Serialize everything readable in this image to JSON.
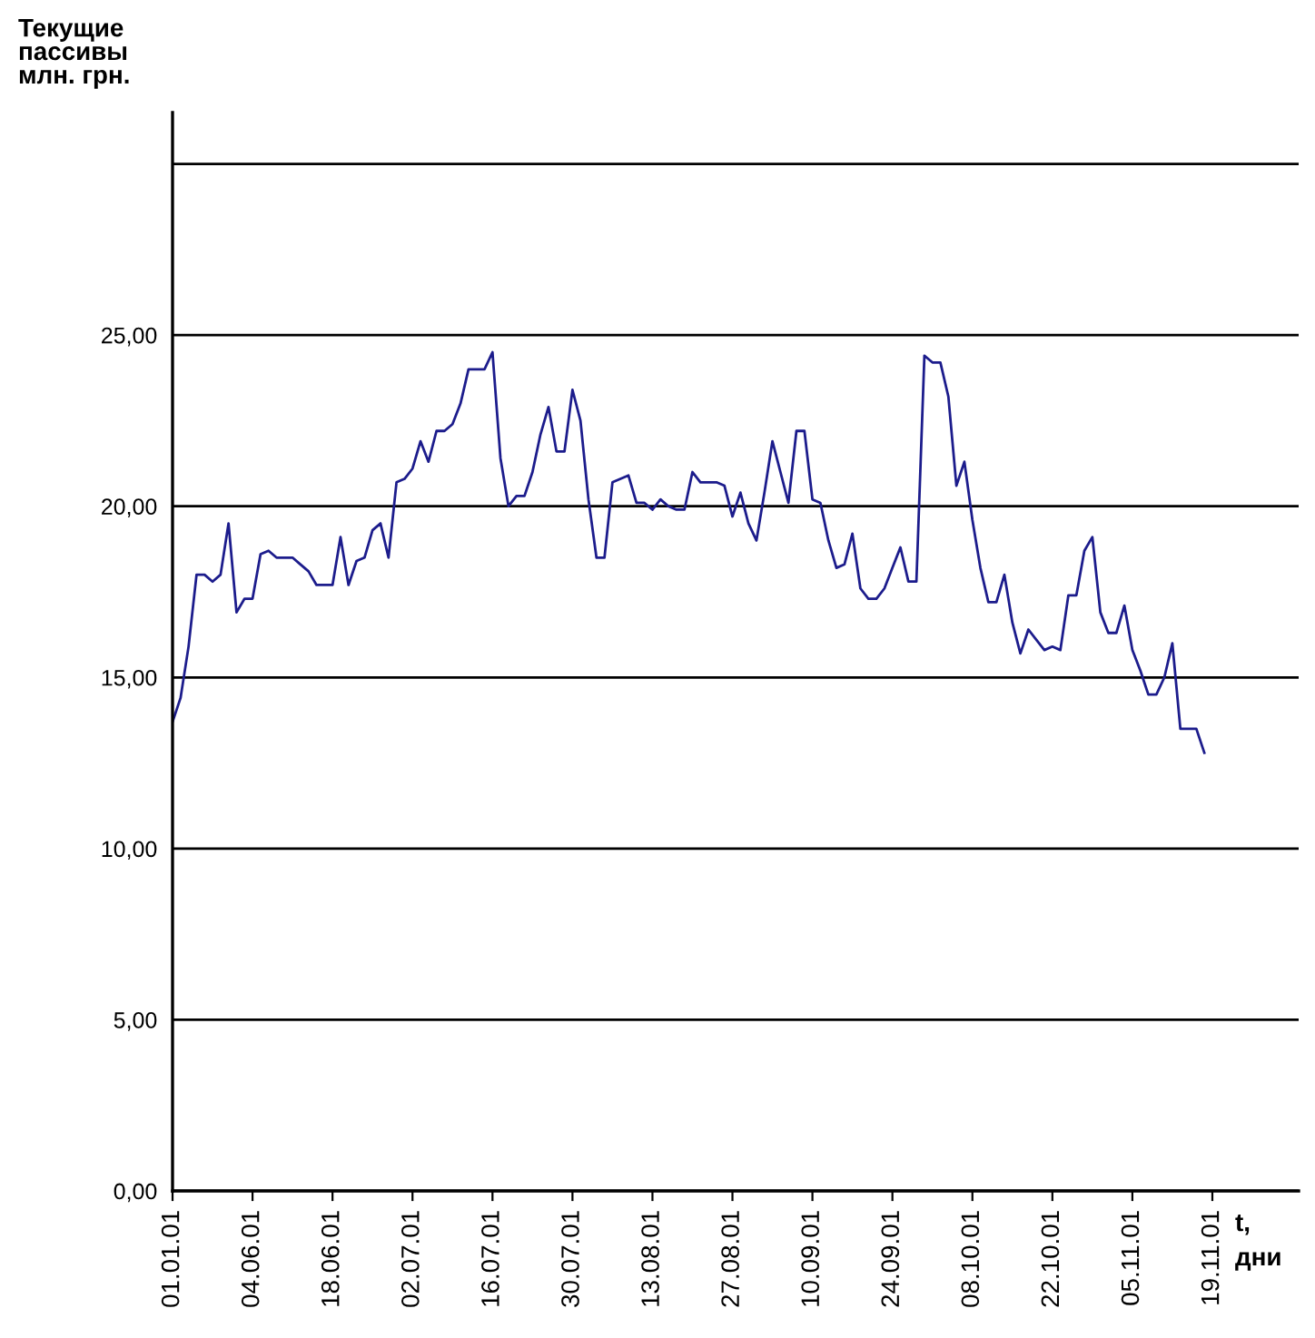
{
  "chart_data": {
    "type": "line",
    "ylabel": "Текущие\nпассивы\nмлн. грн.",
    "xlabel": "t,\nдни",
    "categories": [
      "01.01.01",
      null,
      null,
      null,
      null,
      null,
      null,
      null,
      null,
      null,
      "04.06.01",
      null,
      null,
      null,
      null,
      null,
      null,
      null,
      null,
      null,
      "18.06.01",
      null,
      null,
      null,
      null,
      null,
      null,
      null,
      null,
      null,
      "02.07.01",
      null,
      null,
      null,
      null,
      null,
      null,
      null,
      null,
      null,
      "16.07.01",
      null,
      null,
      null,
      null,
      null,
      null,
      null,
      null,
      null,
      "30.07.01",
      null,
      null,
      null,
      null,
      null,
      null,
      null,
      null,
      null,
      "13.08.01",
      null,
      null,
      null,
      null,
      null,
      null,
      null,
      null,
      null,
      "27.08.01",
      null,
      null,
      null,
      null,
      null,
      null,
      null,
      null,
      null,
      "10.09.01",
      null,
      null,
      null,
      null,
      null,
      null,
      null,
      null,
      null,
      "24.09.01",
      null,
      null,
      null,
      null,
      null,
      null,
      null,
      null,
      null,
      "08.10.01",
      null,
      null,
      null,
      null,
      null,
      null,
      null,
      null,
      null,
      "22.10.01",
      null,
      null,
      null,
      null,
      null,
      null,
      null,
      null,
      null,
      "05.11.01",
      null,
      null,
      null,
      null,
      null,
      null,
      null,
      null,
      null,
      "19.11.01"
    ],
    "series": [
      {
        "color": "#1c1c8c",
        "values": [
          13.7,
          14.4,
          15.9,
          18.0,
          18.0,
          17.8,
          18.0,
          19.5,
          16.9,
          17.3,
          17.3,
          18.6,
          18.7,
          18.5,
          18.5,
          18.5,
          18.3,
          18.1,
          17.7,
          17.7,
          17.7,
          19.1,
          17.7,
          18.4,
          18.5,
          19.3,
          19.5,
          18.5,
          20.7,
          20.8,
          21.1,
          21.9,
          21.3,
          22.2,
          22.2,
          22.4,
          23.0,
          24.0,
          24.0,
          24.0,
          24.5,
          21.4,
          20.0,
          20.3,
          20.3,
          21.0,
          22.1,
          22.9,
          21.6,
          21.6,
          23.4,
          22.5,
          20.2,
          18.5,
          18.5,
          20.7,
          20.8,
          20.9,
          20.1,
          20.1,
          19.9,
          20.2,
          20.0,
          19.9,
          19.9,
          21.0,
          20.7,
          20.7,
          20.7,
          20.6,
          19.7,
          20.4,
          19.5,
          19.0,
          20.4,
          21.9,
          21.0,
          20.1,
          22.2,
          22.2,
          20.2,
          20.1,
          19.0,
          18.2,
          18.3,
          19.2,
          17.6,
          17.3,
          17.3,
          17.6,
          18.2,
          18.8,
          17.8,
          17.8,
          24.4,
          24.2,
          24.2,
          23.2,
          20.6,
          21.3,
          19.6,
          18.2,
          17.2,
          17.2,
          18.0,
          16.6,
          15.7,
          16.4,
          16.1,
          15.8,
          15.9,
          15.8,
          17.4,
          17.4,
          18.7,
          19.1,
          16.9,
          16.3,
          16.3,
          17.1,
          15.8,
          15.2,
          14.5,
          14.5,
          15.0,
          16.0,
          13.5,
          13.5,
          13.5,
          12.8,
          null
        ]
      }
    ],
    "ylim": [
      0,
      31.5
    ],
    "yticks": [
      {
        "value": 0,
        "label": "0,00"
      },
      {
        "value": 5,
        "label": "5,00"
      },
      {
        "value": 10,
        "label": "10,00"
      },
      {
        "value": 15,
        "label": "15,00"
      },
      {
        "value": 20,
        "label": "20,00"
      },
      {
        "value": 25,
        "label": "25,00"
      },
      {
        "value": 30,
        "label": null
      }
    ],
    "grid": "y",
    "marker": "none",
    "line_style": "solid",
    "legend": false
  }
}
